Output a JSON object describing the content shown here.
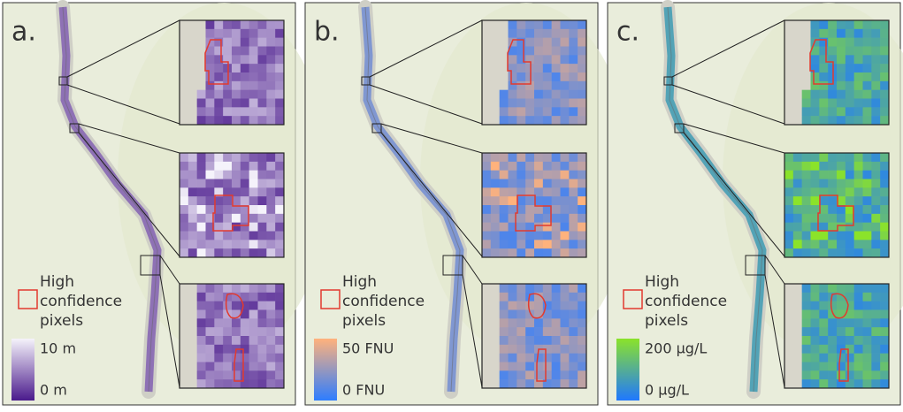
{
  "panels": [
    {
      "label": "a.",
      "colorbar": {
        "max_label": "10 m",
        "min_label": "0 m",
        "max_color": "#f5f3fb",
        "min_color": "#4a1a8c"
      }
    },
    {
      "label": "b.",
      "colorbar": {
        "max_label": "50 FNU",
        "min_label": "0 FNU",
        "max_color": "#ffb27c",
        "min_color": "#2d7dff"
      }
    },
    {
      "label": "c.",
      "colorbar": {
        "max_label": "200 µg/L",
        "min_label": "0 µg/L",
        "max_color": "#8be32a",
        "min_color": "#1f78ff"
      }
    }
  ],
  "legend": {
    "lines": [
      "High",
      "confidence",
      "pixels"
    ]
  }
}
